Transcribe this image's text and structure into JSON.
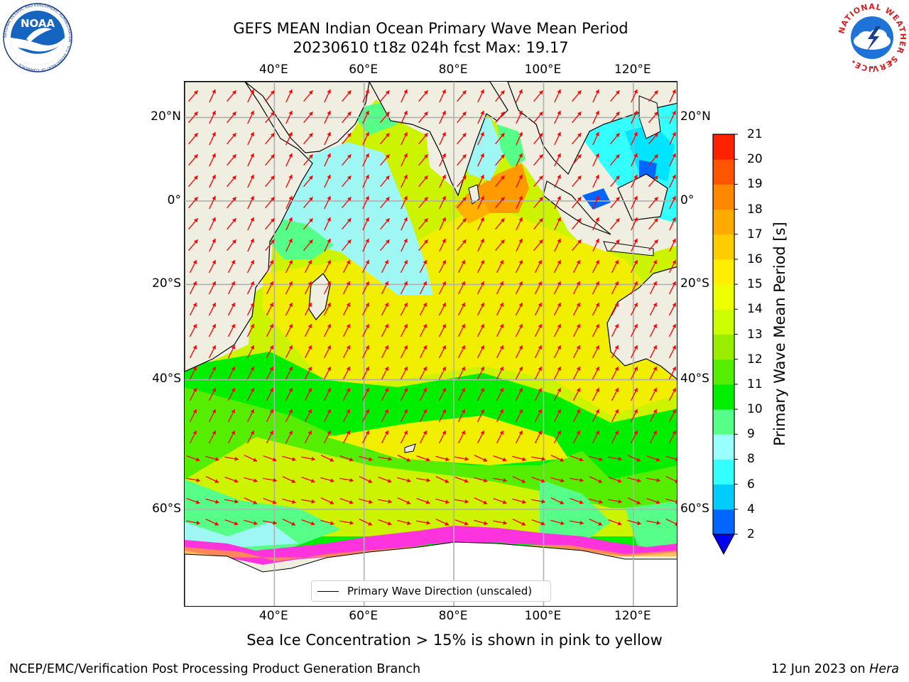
{
  "title": {
    "line1": "GEFS MEAN Indian Ocean Primary Wave Mean Period",
    "line2": "20230610 t18z 024h fcst   Max: 19.17"
  },
  "logos": {
    "noaa": {
      "text": "NOAA",
      "ring_text": "NATIONAL OCEANIC AND ATMOSPHERIC ADMINISTRATION · U.S. DEPARTMENT OF COMMERCE ·"
    },
    "nws": {
      "ring_text": "NATIONAL WEATHER SERVICE"
    }
  },
  "map": {
    "lon_range": [
      20,
      130
    ],
    "lat_range": [
      -70,
      28
    ],
    "lon_ticks": [
      {
        "value": 40,
        "label": "40°E"
      },
      {
        "value": 60,
        "label": "60°E"
      },
      {
        "value": 80,
        "label": "80°E"
      },
      {
        "value": 100,
        "label": "100°E"
      },
      {
        "value": 120,
        "label": "120°E"
      }
    ],
    "lat_ticks": [
      {
        "value": 20,
        "label": "20°N"
      },
      {
        "value": 0,
        "label": "0°"
      },
      {
        "value": -20,
        "label": "20°S"
      },
      {
        "value": -40,
        "label": "40°S"
      },
      {
        "value": -60,
        "label": "60°S"
      }
    ],
    "land_color": "#efeee0",
    "ice_shelf_color": "#ffffff",
    "sea_ice_color": "#ff33dd",
    "arrow_color": "#ff0000",
    "grid": true
  },
  "legend": {
    "entry": "Primary Wave Direction (unscaled)",
    "placement": "bottom-center"
  },
  "colorbar": {
    "title": "Primary Wave Mean Period [s]",
    "levels": [
      2,
      4,
      6,
      8,
      9,
      10,
      11,
      12,
      13,
      14,
      15,
      16,
      17,
      18,
      19,
      20,
      21
    ],
    "colors": [
      "#0066ff",
      "#00ccff",
      "#33ffff",
      "#99ffff",
      "#55ff88",
      "#00ee00",
      "#55ee00",
      "#99ee00",
      "#ccff00",
      "#eeff00",
      "#ffee00",
      "#ffcc00",
      "#ffaa00",
      "#ff8800",
      "#ff5500",
      "#ff2200"
    ],
    "under_color": "#0000ee",
    "extend": "min"
  },
  "ice_note": "Sea Ice Concentration > 15% is shown in pink to yellow",
  "footer": {
    "left": "NCEP/EMC/Verification Post Processing Product Generation Branch",
    "right_date": "12 Jun 2023 on ",
    "right_host": "Hera"
  }
}
